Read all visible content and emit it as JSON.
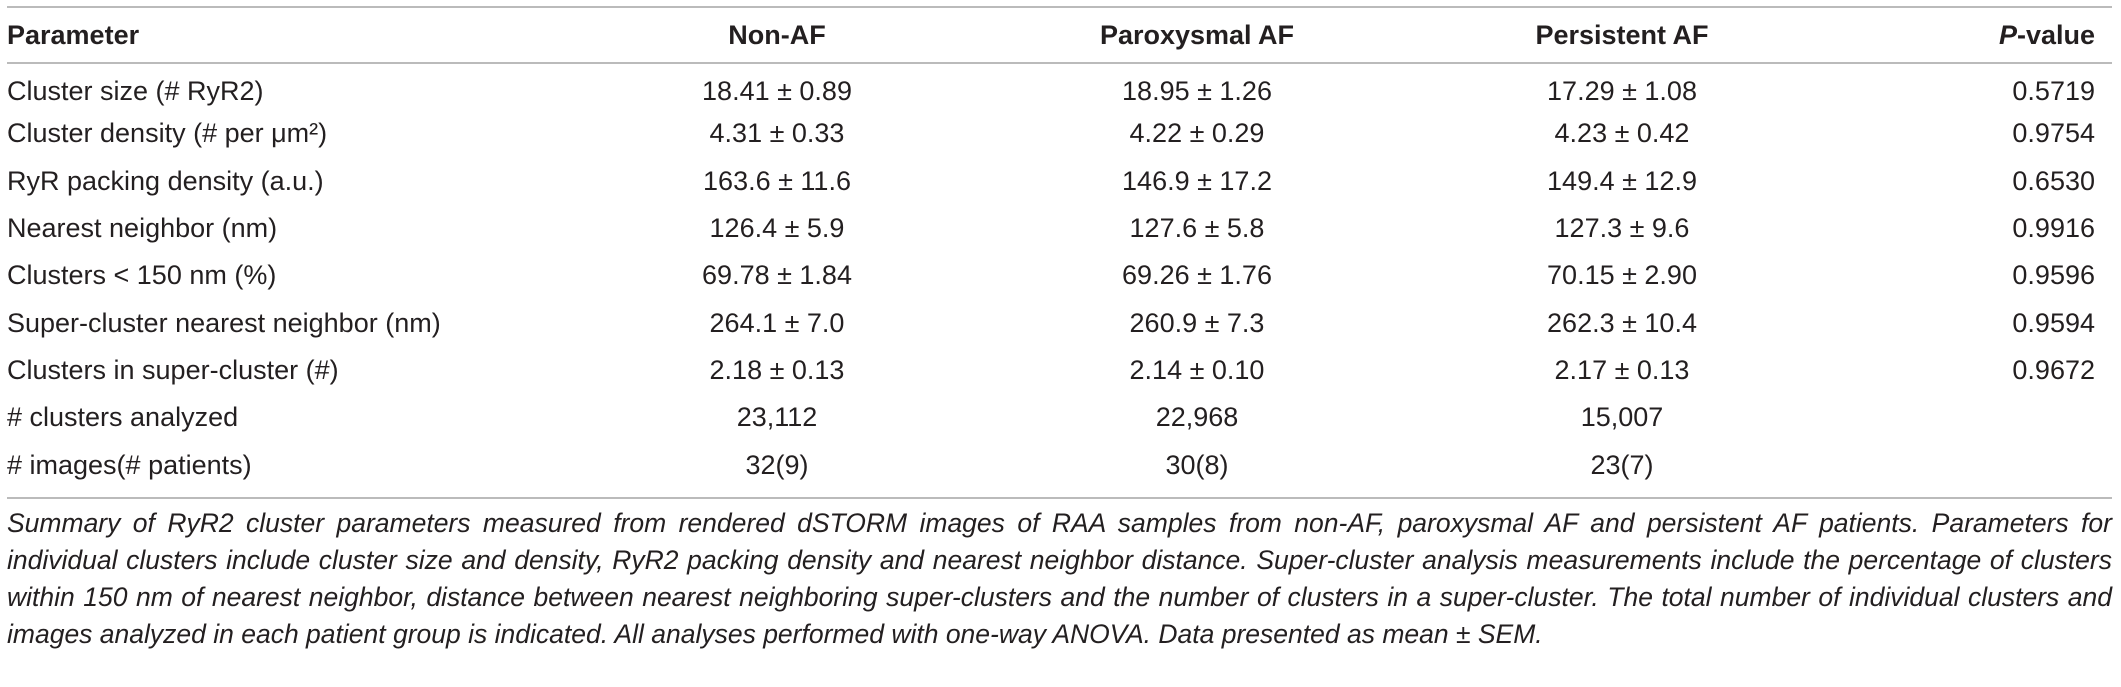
{
  "table": {
    "header": [
      "Parameter",
      "Non-AF",
      "Paroxysmal AF",
      "Persistent AF",
      "P-value"
    ],
    "rows": [
      [
        "Cluster size (# RyR2)",
        "18.41 ± 0.89",
        "18.95 ± 1.26",
        "17.29 ± 1.08",
        "0.5719"
      ],
      [
        "Cluster density (# per μm²)",
        "4.31 ± 0.33",
        "4.22 ± 0.29",
        "4.23 ± 0.42",
        "0.9754"
      ],
      [
        "RyR packing density (a.u.)",
        "163.6 ± 11.6",
        "146.9 ± 17.2",
        "149.4 ± 12.9",
        "0.6530"
      ],
      [
        "Nearest neighbor (nm)",
        "126.4 ± 5.9",
        "127.6 ± 5.8",
        "127.3 ± 9.6",
        "0.9916"
      ],
      [
        "Clusters < 150 nm (%)",
        "69.78 ± 1.84",
        "69.26 ± 1.76",
        "70.15 ± 2.90",
        "0.9596"
      ],
      [
        "Super-cluster nearest neighbor (nm)",
        "264.1 ± 7.0",
        "260.9 ± 7.3",
        "262.3 ± 10.4",
        "0.9594"
      ],
      [
        "Clusters in super-cluster (#)",
        "2.18 ± 0.13",
        "2.14 ± 0.10",
        "2.17 ± 0.13",
        "0.9672"
      ],
      [
        "# clusters analyzed",
        "23,112",
        "22,968",
        "15,007"
      ],
      [
        "# images(# patients)",
        "32(9)",
        "30(8)",
        "23(7)"
      ]
    ],
    "caption": "Summary of RyR2 cluster parameters measured from rendered dSTORM images of RAA samples from non-AF, paroxysmal AF and persistent AF patients. Parameters for individual clusters include cluster size and density, RyR2 packing density and nearest neighbor distance. Super-cluster analysis measurements include the percentage of clusters within 150 nm of nearest neighbor, distance between nearest neighboring super-clusters and the number of clusters in a super-cluster. The total number of individual clusters and images analyzed in each patient group is indicated. All analyses performed with one-way ANOVA. Data presented as mean ± SEM."
  }
}
